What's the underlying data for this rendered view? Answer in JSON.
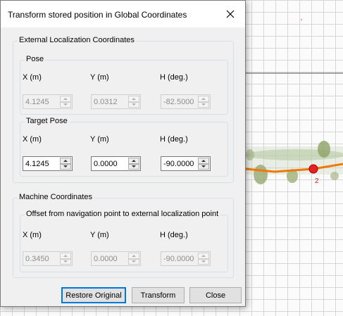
{
  "dialog": {
    "title": "Transform stored position in Global Coordinates"
  },
  "external": {
    "group_label": "External Localization Coordinates",
    "pose": {
      "label": "Pose",
      "col_x": "X (m)",
      "col_y": "Y (m)",
      "col_h": "H (deg.)",
      "x": "4.1245",
      "y": "0.0312",
      "h": "-82.5000"
    },
    "target": {
      "label": "Target Pose",
      "col_x": "X (m)",
      "col_y": "Y (m)",
      "col_h": "H (deg.)",
      "x": "4.1245",
      "y": "0.0000",
      "h": "-90.0000"
    }
  },
  "machine": {
    "group_label": "Machine Coordinates",
    "offset": {
      "label": "Offset from navigation point to external localization point",
      "col_x": "X (m)",
      "col_y": "Y (m)",
      "col_h": "H (deg.)",
      "x": "0.3450",
      "y": "0.0000",
      "h": "-90.0000"
    }
  },
  "buttons": {
    "restore": "Restore Original",
    "transform": "Transform",
    "close": "Close"
  },
  "map": {
    "waypoint_label": "2",
    "path_color": "#f07800",
    "waypoint_color": "#e82020"
  }
}
